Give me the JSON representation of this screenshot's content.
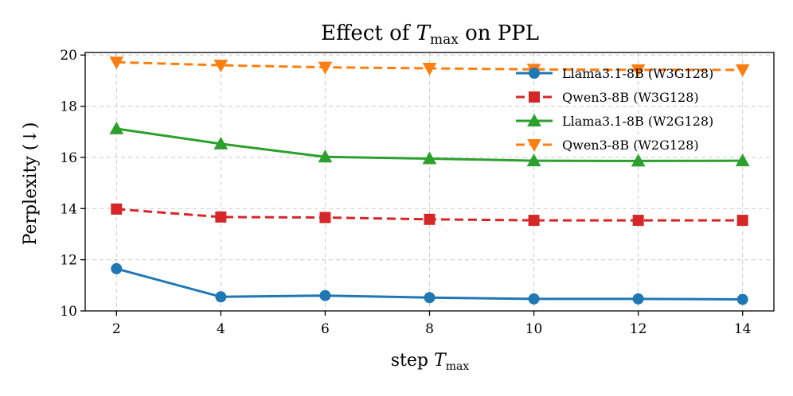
{
  "chart_data": {
    "type": "line",
    "title_prefix": "Effect of ",
    "title_var": "T",
    "title_sub": "max",
    "title_suffix": " on PPL",
    "xlabel_prefix": "step ",
    "xlabel_var": "T",
    "xlabel_sub": "max",
    "ylabel": "Perplexity (↓)",
    "x": [
      2,
      4,
      6,
      8,
      10,
      12,
      14
    ],
    "xticks": [
      "2",
      "4",
      "6",
      "8",
      "10",
      "12",
      "14"
    ],
    "yticks": [
      "10",
      "12",
      "14",
      "16",
      "18",
      "20"
    ],
    "xlim": [
      1.4,
      14.6
    ],
    "ylim": [
      10,
      20.1
    ],
    "grid": true,
    "legend_position": "top-right",
    "series": [
      {
        "name": "Llama3.1-8B (W3G128)",
        "values": [
          11.65,
          10.55,
          10.6,
          10.52,
          10.47,
          10.47,
          10.45
        ],
        "color": "#1f77b4",
        "marker": "circle",
        "dashed": false
      },
      {
        "name": "Qwen3-8B (W3G128)",
        "values": [
          13.98,
          13.67,
          13.65,
          13.58,
          13.54,
          13.54,
          13.54
        ],
        "color": "#d62728",
        "marker": "square",
        "dashed": true
      },
      {
        "name": "Llama3.1-8B (W2G128)",
        "values": [
          17.12,
          16.53,
          16.02,
          15.95,
          15.87,
          15.86,
          15.87
        ],
        "color": "#2ca02c",
        "marker": "triangle-up",
        "dashed": false
      },
      {
        "name": "Qwen3-8B (W2G128)",
        "values": [
          19.72,
          19.6,
          19.52,
          19.48,
          19.44,
          19.42,
          19.42
        ],
        "color": "#ff7f0e",
        "marker": "triangle-down",
        "dashed": true
      }
    ]
  }
}
